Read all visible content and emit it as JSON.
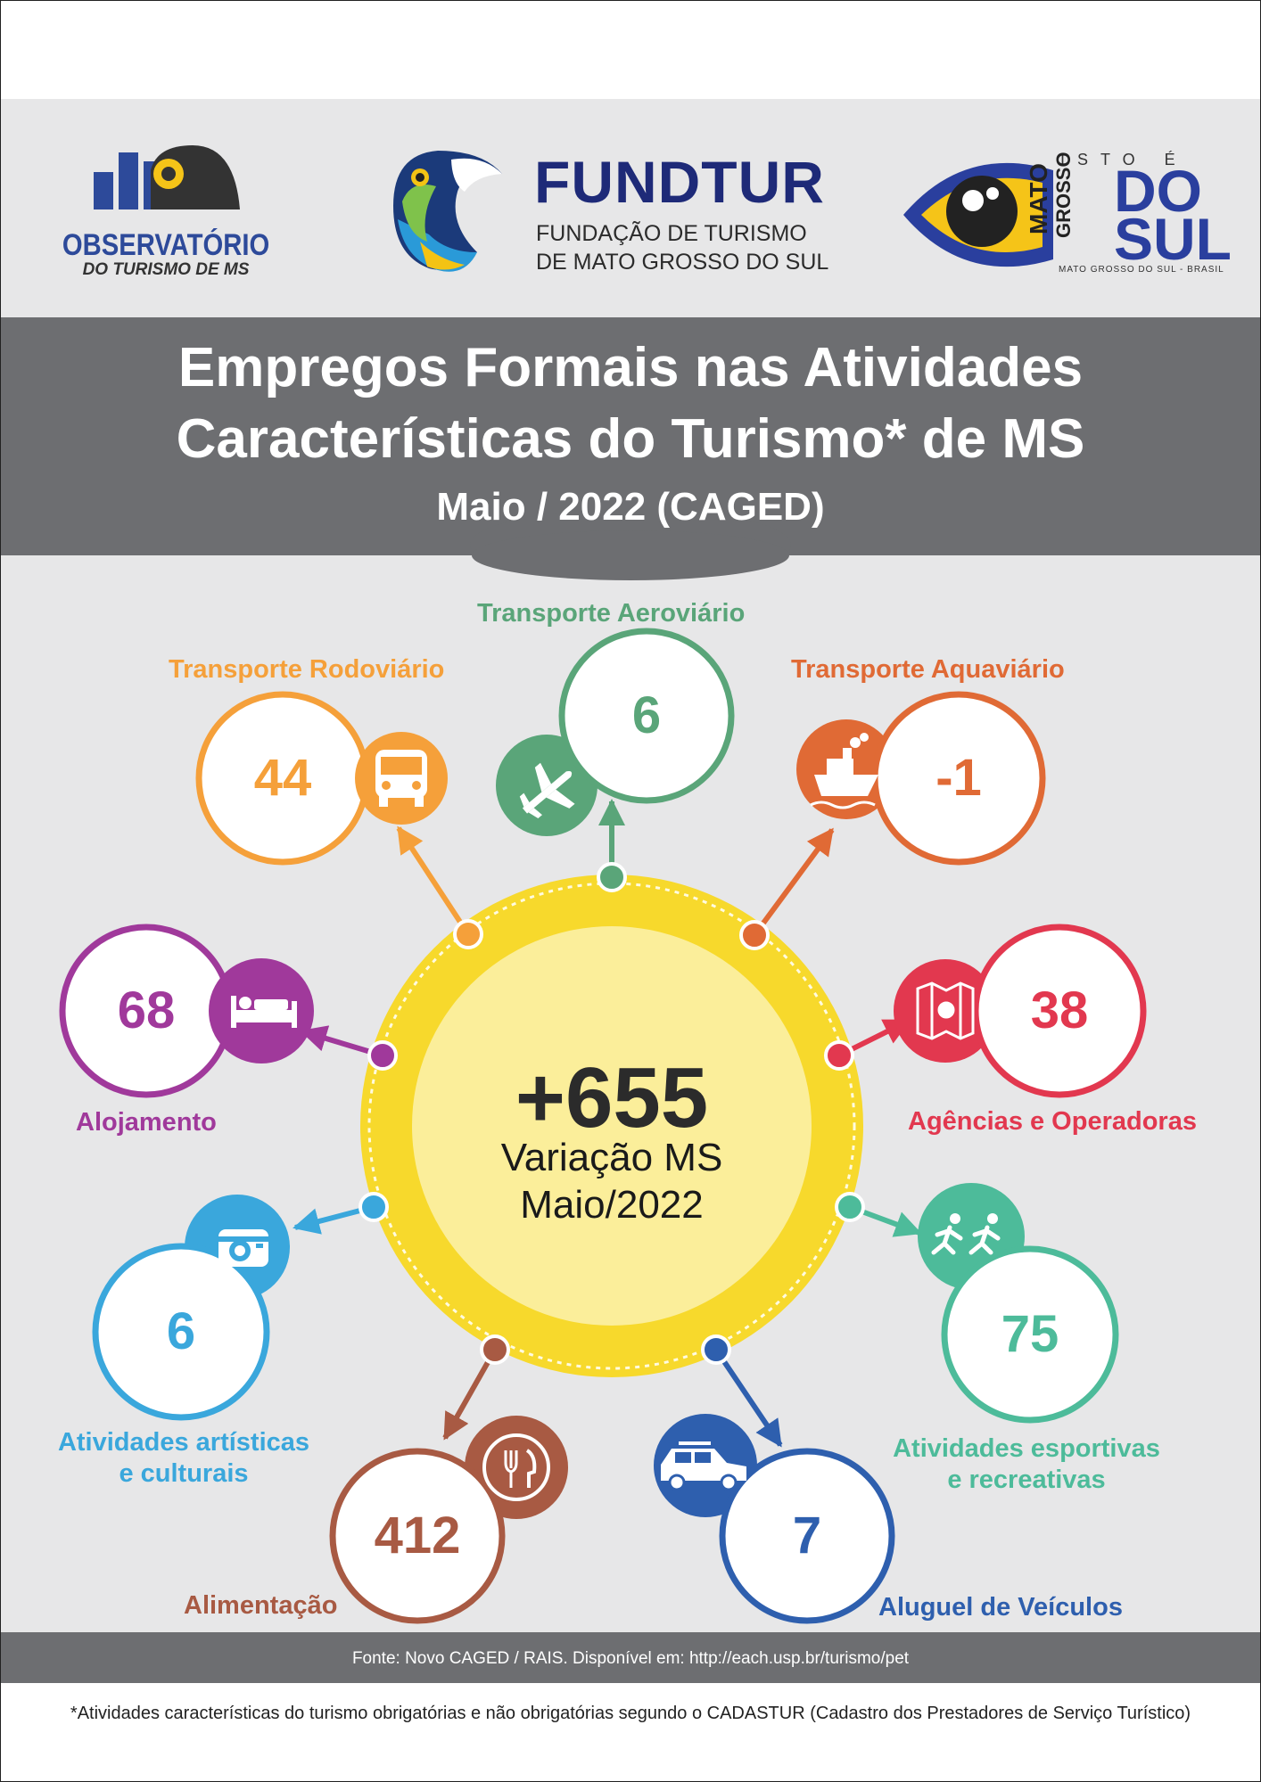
{
  "header": {
    "title_line1": "Empregos Formais nas Atividades",
    "title_line2": "Características do Turismo* de MS",
    "subtitle": "Maio / 2022 (CAGED)"
  },
  "logos": {
    "observatorio": {
      "name": "OBSERVATÓRIO",
      "sub": "DO TURISMO DE MS"
    },
    "fundtur": {
      "name": "FUNDTUR",
      "sub_line1": "FUNDAÇÃO DE TURISMO",
      "sub_line2": "DE MATO GROSSO DO SUL"
    },
    "ms": {
      "isto": "ISTO É",
      "mato": "MATO",
      "grosso": "GROSSO",
      "do": "DO",
      "sul": "SUL",
      "brasil": "MATO GROSSO DO SUL - BRASIL"
    }
  },
  "center": {
    "value": "+655",
    "label_line1": "Variação MS",
    "label_line2": "Maio/2022"
  },
  "activities": [
    {
      "id": "rodoviario",
      "label": "Transporte Rodoviário",
      "value": "44",
      "color": "#f5a03a",
      "icon": "bus-icon"
    },
    {
      "id": "aeroviario",
      "label": "Transporte Aeroviário",
      "value": "6",
      "color": "#5aa579",
      "icon": "airplane-icon"
    },
    {
      "id": "aquaviario",
      "label": "Transporte Aquaviário",
      "value": "-1",
      "color": "#e06a35",
      "icon": "ship-icon"
    },
    {
      "id": "alojamento",
      "label": "Alojamento",
      "value": "68",
      "color": "#a0399b",
      "icon": "bed-icon"
    },
    {
      "id": "agencias",
      "label": "Agências e Operadoras",
      "value": "38",
      "color": "#e2384f",
      "icon": "map-icon"
    },
    {
      "id": "artisticas",
      "label_line1": "Atividades artísticas",
      "label_line2": "e culturais",
      "value": "6",
      "color": "#3aa7dc",
      "icon": "camera-icon"
    },
    {
      "id": "esportivas",
      "label_line1": "Atividades esportivas",
      "label_line2": "e recreativas",
      "value": "75",
      "color": "#4dbb9a",
      "icon": "runners-icon"
    },
    {
      "id": "alimentacao",
      "label": "Alimentação",
      "value": "412",
      "color": "#a85a43",
      "icon": "fork-knife-icon"
    },
    {
      "id": "veiculos",
      "label": "Aluguel de Veículos",
      "value": "7",
      "color": "#2e5fae",
      "icon": "car-icon"
    }
  ],
  "footer": {
    "source": "Fonte: Novo CAGED / RAIS. Disponível em: http://each.usp.br/turismo/pet",
    "footnote": "*Atividades características do turismo obrigatórias e não obrigatórias segundo o CADASTUR (Cadastro dos Prestadores de Serviço Turístico)"
  },
  "colors": {
    "header_band": "#6d6e71",
    "panel_bg": "#e7e7e8",
    "center_ring": "#f7d92c",
    "center_fill": "#fbee9a"
  }
}
